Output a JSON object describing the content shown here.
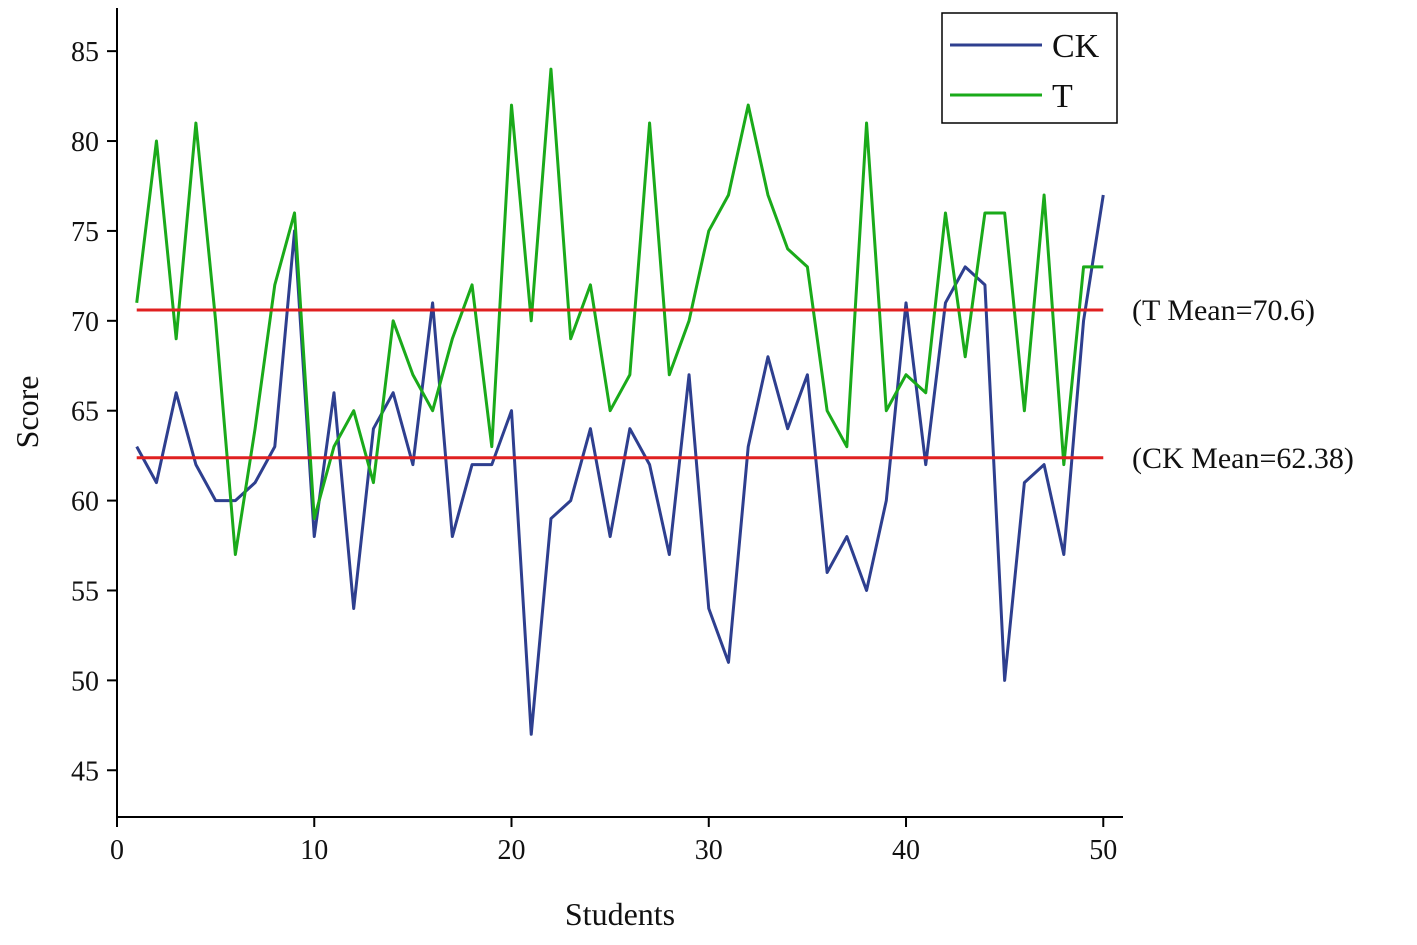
{
  "chart_data": {
    "type": "line",
    "xlabel": "Students",
    "ylabel": "Score",
    "x": [
      1,
      2,
      3,
      4,
      5,
      6,
      7,
      8,
      9,
      10,
      11,
      12,
      13,
      14,
      15,
      16,
      17,
      18,
      19,
      20,
      21,
      22,
      23,
      24,
      25,
      26,
      27,
      28,
      29,
      30,
      31,
      32,
      33,
      34,
      35,
      36,
      37,
      38,
      39,
      40,
      41,
      42,
      43,
      44,
      45,
      46,
      47,
      48,
      49,
      50
    ],
    "series": [
      {
        "name": "CK",
        "color": "#2e3f8f",
        "values": [
          63,
          61,
          66,
          62,
          60,
          60,
          61,
          63,
          75,
          58,
          66,
          54,
          64,
          66,
          62,
          71,
          58,
          62,
          62,
          65,
          47,
          59,
          60,
          64,
          58,
          64,
          62,
          57,
          67,
          54,
          51,
          63,
          68,
          64,
          67,
          56,
          58,
          55,
          60,
          71,
          62,
          71,
          73,
          72,
          50,
          61,
          62,
          57,
          70,
          77
        ]
      },
      {
        "name": "T",
        "color": "#1aaa1a",
        "values": [
          71,
          80,
          69,
          81,
          70,
          57,
          64,
          72,
          76,
          59,
          63,
          65,
          61,
          70,
          67,
          65,
          69,
          72,
          63,
          82,
          70,
          84,
          69,
          72,
          65,
          67,
          81,
          67,
          70,
          75,
          77,
          82,
          77,
          74,
          73,
          65,
          63,
          81,
          65,
          67,
          66,
          76,
          68,
          76,
          76,
          65,
          77,
          62,
          73,
          73
        ]
      }
    ],
    "mean_lines": [
      {
        "label": "(T Mean=70.6)",
        "value": 70.6,
        "color": "#e02020"
      },
      {
        "label": "(CK Mean=62.38)",
        "value": 62.38,
        "color": "#e02020"
      }
    ],
    "xlim": [
      0,
      51
    ],
    "ylim": [
      42.4,
      87.4
    ],
    "xticks": [
      0,
      10,
      20,
      30,
      40,
      50
    ],
    "yticks": [
      45,
      50,
      55,
      60,
      65,
      70,
      75,
      80,
      85
    ],
    "legend": "upper-right"
  }
}
